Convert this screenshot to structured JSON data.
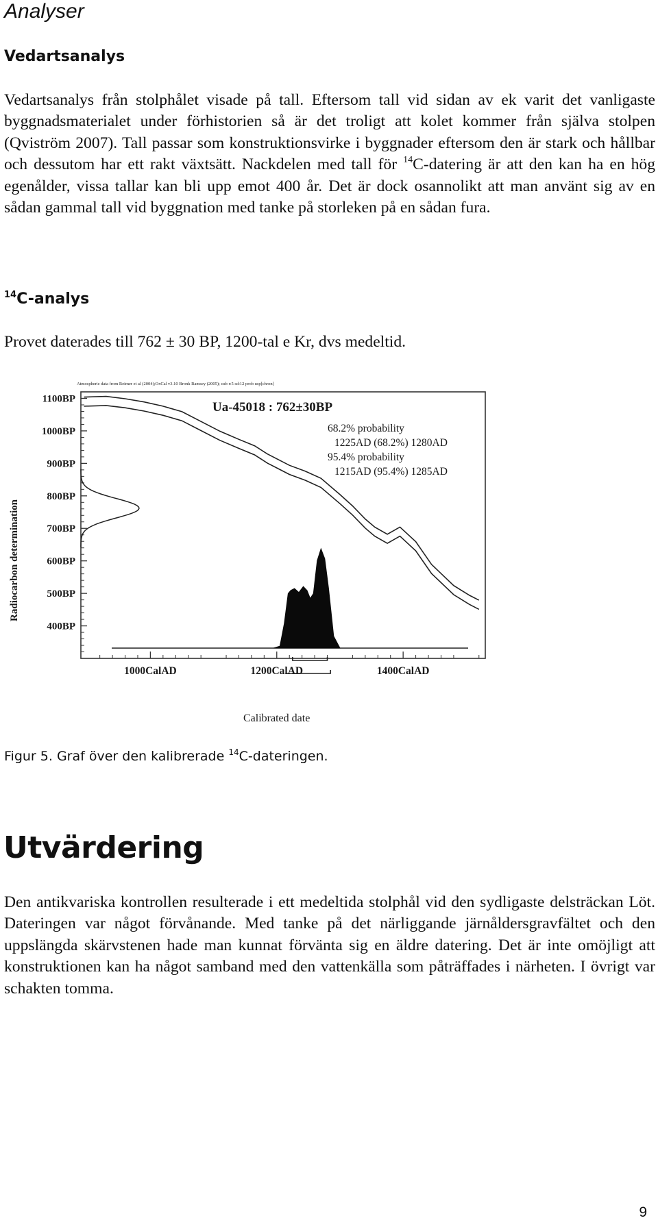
{
  "header": {
    "title": "Analyser"
  },
  "sections": {
    "vedartsanalys": {
      "heading": "Vedartsanalys",
      "text_part1": "Vedartsanalys från stolphålet visade på tall. Eftersom tall vid sidan av ek varit det vanligaste byggnadsmaterialet under förhistorien så är det troligt att kolet kommer från själva stolpen (Qviström 2007). Tall passar som konstruktionsvirke i byggnader eftersom den är stark och hållbar och dessutom har ett rakt växtsätt. Nackdelen med tall för ",
      "superscript": "14",
      "text_part2": "C-datering är att den kan ha en hög egenålder, vissa tallar kan bli upp emot 400 år. Det är dock osannolikt att man använt sig av en sådan gammal tall vid byggnation med tanke på storleken på en sådan fura."
    },
    "c14": {
      "heading_sup": "14",
      "heading": "C-analys",
      "text": "Provet daterades till 762 ± 30 BP, 1200-tal e Kr, dvs medeltid."
    },
    "utvardering": {
      "heading": "Utvärdering",
      "text": "Den antikvariska kontrollen resulterade i ett medeltida stolphål vid den sydligaste delsträckan Löt. Dateringen var något förvånande. Med tanke på det närliggande järnåldersgravfältet och den uppslängda skärvstenen hade man kunnat förvänta sig en äldre datering. Det är inte omöjligt att konstruktionen kan ha något samband med den vattenkälla som påträffades i närheten. I övrigt var schakten tomma."
    }
  },
  "figure": {
    "caption_prefix": "Figur 5. Graf över den kalibrerade ",
    "caption_sup": "14",
    "caption_suffix": "C-dateringen."
  },
  "chart_data": {
    "type": "line",
    "source_note": "Atmospheric data from Reimer et al (2004);OxCal v3.10 Bronk Ramsey (2005); cub r:5 sd:12 prob usp[chron]",
    "title": "Ua-45018 : 762±30BP",
    "annotations": [
      "68.2% probability",
      "1225AD (68.2%) 1280AD",
      "95.4% probability",
      "1215AD (95.4%) 1285AD"
    ],
    "xlabel": "Calibrated date",
    "ylabel": "Radiocarbon determination",
    "x_ticks": [
      "1000CalAD",
      "1200CalAD",
      "1400CalAD"
    ],
    "y_ticks": [
      "1100BP",
      "1000BP",
      "900BP",
      "800BP",
      "700BP",
      "600BP",
      "500BP",
      "400BP"
    ],
    "xlim": [
      890,
      1530
    ],
    "ylim": [
      300,
      1120
    ],
    "calibration_curve": {
      "x": [
        895,
        930,
        960,
        990,
        1020,
        1050,
        1080,
        1110,
        1140,
        1165,
        1185,
        1200,
        1220,
        1245,
        1270,
        1300,
        1320,
        1340,
        1355,
        1375,
        1395,
        1420,
        1445,
        1480,
        1505,
        1520
      ],
      "y": [
        1090,
        1092,
        1085,
        1075,
        1062,
        1045,
        1015,
        985,
        960,
        940,
        915,
        900,
        880,
        862,
        840,
        790,
        755,
        715,
        690,
        668,
        690,
        645,
        575,
        510,
        480,
        465
      ]
    },
    "measurement": {
      "mean_bp": 762,
      "error": 30
    },
    "calibrated_distribution": {
      "x": [
        1195,
        1205,
        1212,
        1218,
        1222,
        1228,
        1235,
        1242,
        1248,
        1253,
        1258,
        1264,
        1270,
        1276,
        1282,
        1290,
        1300
      ],
      "density": [
        0.0,
        0.02,
        0.25,
        0.55,
        0.58,
        0.6,
        0.56,
        0.62,
        0.58,
        0.5,
        0.55,
        0.88,
        1.0,
        0.9,
        0.6,
        0.12,
        0.0
      ]
    },
    "ranges": {
      "68.2%": [
        1225,
        1280
      ],
      "95.4%": [
        1215,
        1285
      ]
    }
  },
  "page_number": "9"
}
